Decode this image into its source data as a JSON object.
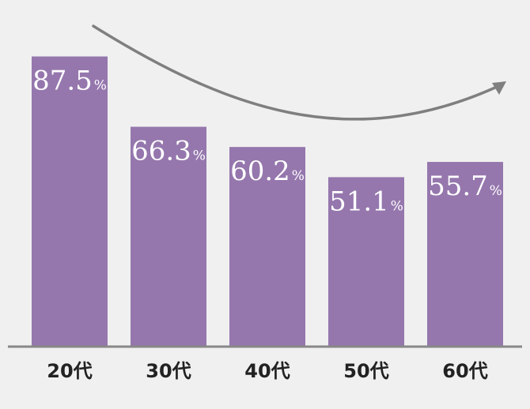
{
  "chart_data": {
    "type": "bar",
    "categories": [
      "20代",
      "30代",
      "40代",
      "50代",
      "60代"
    ],
    "values": [
      87.5,
      66.3,
      60.2,
      51.1,
      55.7
    ],
    "value_labels": [
      "87.5",
      "66.3",
      "60.2",
      "51.1",
      "55.7"
    ],
    "unit": "%",
    "title": "",
    "xlabel": "",
    "ylabel": "",
    "ylim": [
      0,
      100
    ],
    "grid": false,
    "legend": "none",
    "trend_arrow": "curved U-shaped arrow pointing up-right",
    "colors": {
      "bar": "#9577ad",
      "baseline": "#888888",
      "arrow": "#7f7f7f",
      "label_text": "#ffffff",
      "category_text": "#222222",
      "background": "#f0f0f0"
    }
  }
}
